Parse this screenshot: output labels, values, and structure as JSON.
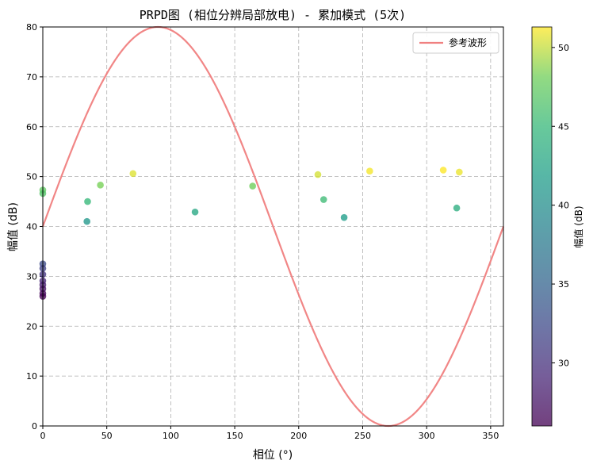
{
  "chart_data": {
    "type": "scatter",
    "title": "PRPD图 (相位分辨局部放电) - 累加模式 (5次)",
    "xlabel": "相位 (°)",
    "ylabel": "幅值 (dB)",
    "xlim": [
      0,
      360
    ],
    "ylim": [
      0,
      80
    ],
    "xticks": [
      0,
      50,
      100,
      150,
      200,
      250,
      300,
      350
    ],
    "yticks": [
      0,
      10,
      20,
      30,
      40,
      50,
      60,
      70,
      80
    ],
    "grid": true,
    "legend_position": "top-right",
    "reference_wave": {
      "name": "参考波形",
      "color": "#f08080",
      "center": 40,
      "amplitude": 40
    },
    "points": [
      {
        "x": 0,
        "y": 47.3
      },
      {
        "x": 0,
        "y": 46.6
      },
      {
        "x": 0,
        "y": 32.5
      },
      {
        "x": 0,
        "y": 31.6
      },
      {
        "x": 0,
        "y": 30.4
      },
      {
        "x": 0,
        "y": 29.1
      },
      {
        "x": 0,
        "y": 28.3
      },
      {
        "x": 0,
        "y": 27.5
      },
      {
        "x": 0,
        "y": 26.6
      },
      {
        "x": 0,
        "y": 26.0
      },
      {
        "x": 34.5,
        "y": 41.0
      },
      {
        "x": 35,
        "y": 45.0
      },
      {
        "x": 45,
        "y": 48.3
      },
      {
        "x": 70.5,
        "y": 50.6
      },
      {
        "x": 119,
        "y": 42.9
      },
      {
        "x": 164,
        "y": 48.1
      },
      {
        "x": 215,
        "y": 50.4
      },
      {
        "x": 219.5,
        "y": 45.4
      },
      {
        "x": 235.5,
        "y": 41.8
      },
      {
        "x": 255.5,
        "y": 51.1
      },
      {
        "x": 313,
        "y": 51.3
      },
      {
        "x": 323.5,
        "y": 43.7
      },
      {
        "x": 325.5,
        "y": 50.9
      }
    ],
    "colorbar": {
      "label": "幅值 (dB)",
      "min": 26,
      "max": 51.3,
      "ticks": [
        30,
        35,
        40,
        45,
        50
      ],
      "colormap": "viridis"
    }
  }
}
